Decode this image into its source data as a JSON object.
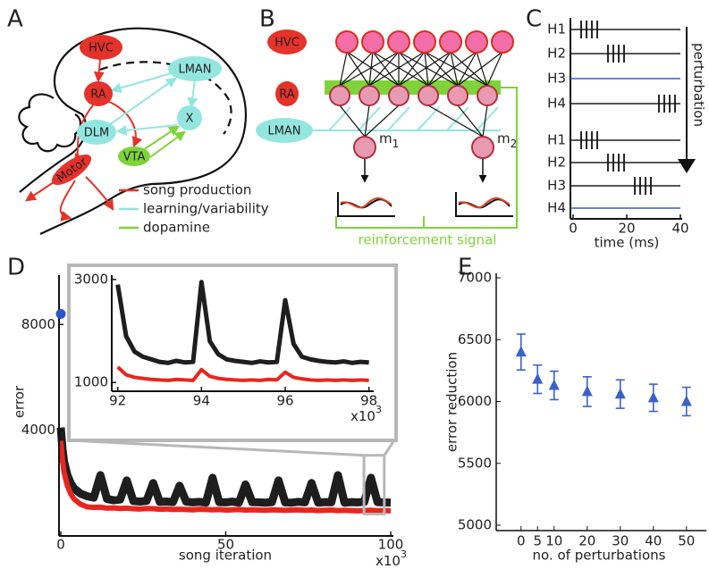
{
  "panel_labels": [
    "A",
    "B",
    "C",
    "D",
    "E"
  ],
  "brain": {
    "regions": [
      "HVC",
      "RA",
      "LMAN",
      "DLM",
      "X",
      "VTA",
      "Motor"
    ],
    "legend": [
      {
        "label": "song production",
        "color": "#e5322a"
      },
      {
        "label": "learning/variability",
        "color": "#93e6df"
      },
      {
        "label": "dopamine",
        "color": "#7fd33a"
      }
    ]
  },
  "network": {
    "layers": [
      "HVC",
      "RA",
      "LMAN"
    ],
    "outputs": [
      {
        "name": "m",
        "index": "1"
      },
      {
        "name": "m",
        "index": "2"
      }
    ],
    "signal": "reinforcement signal"
  },
  "raster": {
    "rows": [
      {
        "label": "H1",
        "spikes": [
          3,
          5,
          7,
          9
        ],
        "color": "#1e1e1e"
      },
      {
        "label": "H2",
        "spikes": [
          13,
          15,
          17,
          19
        ],
        "color": "#1e1e1e"
      },
      {
        "label": "H3",
        "spikes": [],
        "color": "#3d5bc4"
      },
      {
        "label": "H4",
        "spikes": [
          32,
          34,
          36,
          38
        ],
        "color": "#1e1e1e"
      },
      {
        "label": "H1",
        "spikes": [
          3,
          5,
          7,
          9
        ],
        "color": "#1e1e1e"
      },
      {
        "label": "H2",
        "spikes": [
          13,
          15,
          17,
          19
        ],
        "color": "#1e1e1e"
      },
      {
        "label": "H3",
        "spikes": [
          23,
          25,
          27,
          29
        ],
        "color": "#1e1e1e"
      },
      {
        "label": "H4",
        "spikes": [],
        "color": "#3d5bc4"
      }
    ],
    "perturbation": "perturbation",
    "xlim": [
      0,
      40
    ],
    "xticks": [
      0,
      20,
      40
    ],
    "xlabel": "time (ms)"
  },
  "chart_data": [
    {
      "type": "line",
      "xlabel": "song iteration",
      "ylabel": "error",
      "x_multiplier": "x10",
      "x_multiplier_power": "3",
      "x": [
        0,
        0.5,
        1,
        2,
        3,
        4,
        5,
        6,
        8,
        10,
        12,
        14,
        16,
        18,
        20,
        22,
        24,
        26,
        28,
        30,
        32,
        34,
        36,
        38,
        40,
        42,
        44,
        46,
        48,
        50,
        52,
        54,
        56,
        58,
        60,
        62,
        64,
        66,
        68,
        70,
        72,
        74,
        76,
        78,
        80,
        82,
        84,
        86,
        88,
        90,
        92,
        94,
        96,
        98,
        100
      ],
      "series": [
        {
          "color": "#1e1e1e",
          "values": [
            4100,
            3300,
            2800,
            2300,
            2000,
            1800,
            1700,
            1600,
            1500,
            1450,
            2300,
            1400,
            1350,
            1380,
            2100,
            1320,
            1300,
            1330,
            2000,
            1290,
            1300,
            1280,
            1900,
            1300,
            1270,
            1290,
            1260,
            2200,
            1280,
            1270,
            1300,
            1260,
            1950,
            1280,
            1270,
            1260,
            1280,
            2100,
            1270,
            1260,
            1290,
            1270,
            2000,
            1260,
            1280,
            1270,
            2300,
            1260,
            1280,
            1270,
            1290,
            2200,
            1280,
            1270,
            1260
          ]
        },
        {
          "color": "#e8261f",
          "values": [
            3600,
            2900,
            2400,
            1900,
            1600,
            1400,
            1300,
            1200,
            1100,
            1080,
            1090,
            1050,
            1060,
            1040,
            1050,
            1030,
            1020,
            1040,
            1030,
            1010,
            1020,
            1000,
            1010,
            1000,
            990,
            1010,
            1000,
            990,
            1000,
            980,
            990,
            1000,
            980,
            990,
            980,
            970,
            990,
            980,
            970,
            980,
            990,
            970,
            980,
            960,
            970,
            980,
            960,
            970,
            960,
            950,
            960,
            970,
            950,
            960,
            950
          ]
        }
      ],
      "marker": {
        "x": 0,
        "y": 8400,
        "color": "#2d55d0"
      },
      "xlim": [
        0,
        100
      ],
      "xticks": [
        0,
        50,
        100
      ],
      "ylim": [
        0,
        9800
      ],
      "yticks": [
        4000,
        8000
      ],
      "inset": {
        "x": [
          92.0,
          92.2,
          92.4,
          92.6,
          92.8,
          93.0,
          93.2,
          93.4,
          93.6,
          93.8,
          94.0,
          94.2,
          94.4,
          94.6,
          94.8,
          95.0,
          95.2,
          95.4,
          95.6,
          95.8,
          96.0,
          96.2,
          96.4,
          96.6,
          96.8,
          97.0,
          97.2,
          97.4,
          97.6,
          97.8,
          98.0
        ],
        "series": [
          {
            "color": "#1e1e1e",
            "values": [
              2900,
              1900,
              1600,
              1500,
              1450,
              1400,
              1380,
              1420,
              1390,
              1400,
              2950,
              1800,
              1550,
              1450,
              1420,
              1400,
              1380,
              1410,
              1390,
              1400,
              2600,
              1750,
              1500,
              1450,
              1420,
              1400,
              1390,
              1410,
              1380,
              1400,
              1390
            ]
          },
          {
            "color": "#e8261f",
            "values": [
              1300,
              1150,
              1100,
              1080,
              1060,
              1050,
              1040,
              1060,
              1050,
              1040,
              1250,
              1120,
              1080,
              1060,
              1050,
              1040,
              1050,
              1040,
              1060,
              1050,
              1200,
              1100,
              1070,
              1050,
              1040,
              1050,
              1040,
              1050,
              1040,
              1050,
              1040
            ]
          }
        ],
        "xlim": [
          91.9,
          98.05
        ],
        "xticks": [
          92,
          94,
          96,
          98
        ],
        "ylim": [
          830,
          3050
        ],
        "yticks": [
          1000,
          3000
        ],
        "x_multiplier": "x10",
        "x_multiplier_power": "3"
      }
    },
    {
      "type": "errorbar",
      "xlabel": "no. of perturbations",
      "ylabel": "error reduction",
      "x": [
        0,
        5,
        10,
        20,
        30,
        40,
        50
      ],
      "values": [
        6400,
        6180,
        6130,
        6080,
        6060,
        6030,
        6000
      ],
      "errors": [
        145,
        115,
        115,
        120,
        115,
        110,
        115
      ],
      "color": "#3a62c8",
      "xlim": [
        -7.5,
        56
      ],
      "xticks": [
        0,
        5,
        10,
        20,
        30,
        40,
        50
      ],
      "ylim": [
        5000,
        7000
      ],
      "yticks": [
        5000,
        5500,
        6000,
        6500,
        7000
      ]
    }
  ]
}
